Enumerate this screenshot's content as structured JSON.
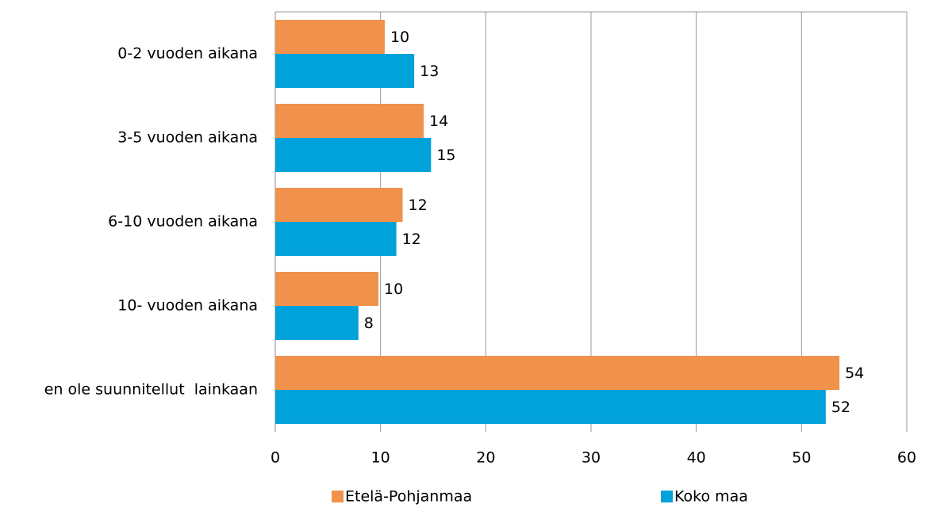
{
  "chart_data": {
    "type": "hbar",
    "categories": [
      "0-2 vuoden aikana",
      "3-5 vuoden aikana",
      "6-10 vuoden aikana",
      "10- vuoden aikana",
      "en ole suunnitellut  lainkaan"
    ],
    "series": [
      {
        "name": "Etelä-Pohjanmaa",
        "color": "#f0924c",
        "values": [
          10.4,
          14.1,
          12.1,
          9.8,
          53.6
        ],
        "value_labels": [
          "10",
          "14",
          "12",
          "10",
          "54"
        ]
      },
      {
        "name": "Koko maa",
        "color": "#00a2d9",
        "values": [
          13.2,
          14.8,
          11.5,
          7.9,
          52.3
        ],
        "value_labels": [
          "13",
          "15",
          "12",
          "8",
          "52"
        ]
      }
    ],
    "xlim": [
      0,
      60
    ],
    "xticks": [
      0,
      10,
      20,
      30,
      40,
      50,
      60
    ],
    "grid": true,
    "legend": "bottom"
  }
}
